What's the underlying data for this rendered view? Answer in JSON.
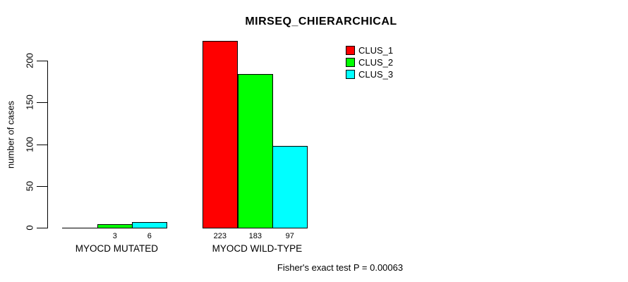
{
  "chart_data": {
    "type": "bar",
    "title": "MIRSEQ_CHIERARCHICAL",
    "ylabel": "number of cases",
    "xlabel": "",
    "categories": [
      "MYOCD MUTATED",
      "MYOCD WILD-TYPE"
    ],
    "series": [
      {
        "name": "CLUS_1",
        "color": "#FF0000",
        "values": [
          0,
          223
        ]
      },
      {
        "name": "CLUS_2",
        "color": "#00FF00",
        "values": [
          3,
          183
        ]
      },
      {
        "name": "CLUS_3",
        "color": "#00FFFF",
        "values": [
          6,
          97
        ]
      }
    ],
    "bar_value_labels": [
      [
        "",
        "3",
        "6"
      ],
      [
        "223",
        "183",
        "97"
      ]
    ],
    "yticks": [
      0,
      50,
      100,
      150,
      200
    ],
    "ylim": [
      0,
      223
    ],
    "grid": false,
    "legend_position": "top-right",
    "bar_border_color": "#000000",
    "background_color": "#FFFFFF",
    "annotation": "Fisher's exact test P = 0.00063"
  }
}
